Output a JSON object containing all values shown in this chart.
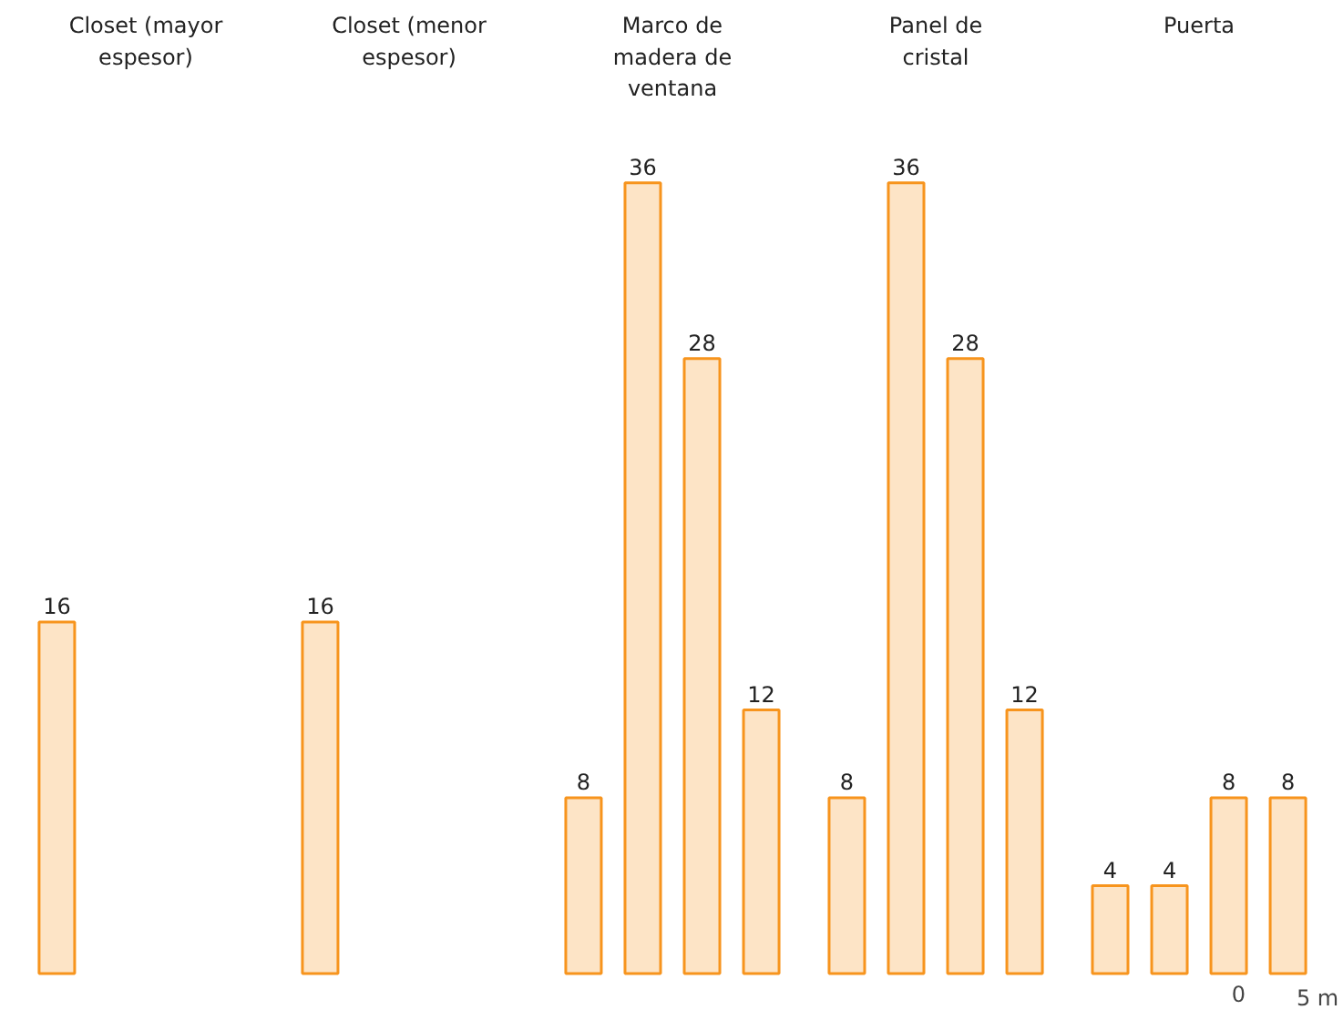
{
  "chart_data": {
    "type": "bar",
    "categories": [
      "Closet (mayor espesor)",
      "Closet (menor espesor)",
      "Marco de madera de ventana",
      "Panel de cristal",
      "Puerta"
    ],
    "series": [
      {
        "color": "#f7941d",
        "values": [
          16,
          16,
          8,
          8,
          4
        ]
      },
      {
        "color": "#f7941d",
        "values": [
          null,
          null,
          36,
          36,
          4
        ]
      },
      {
        "color": "#f7941d",
        "values": [
          null,
          null,
          28,
          28,
          8
        ]
      },
      {
        "color": "#f7941d",
        "values": [
          null,
          null,
          12,
          12,
          8
        ]
      }
    ],
    "data_labels": true,
    "annotations": [
      "0",
      "5 m"
    ]
  }
}
